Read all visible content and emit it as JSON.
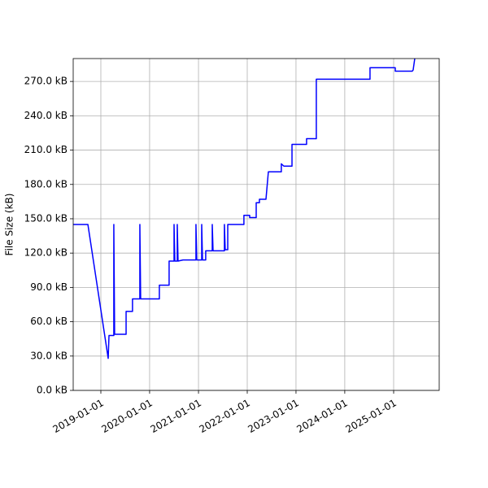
{
  "chart_data": {
    "type": "line",
    "ylabel": "File Size (kB)",
    "color": "#0000ff",
    "grid": true,
    "x": [
      "2018-06-08",
      "2018-09-26",
      "2019-02-25",
      "2019-03-03",
      "2019-04-08",
      "2019-04-08",
      "2019-04-14",
      "2019-07-09",
      "2019-07-09",
      "2019-08-26",
      "2019-08-26",
      "2019-10-20",
      "2019-10-20",
      "2019-10-26",
      "2020-03-14",
      "2020-03-14",
      "2020-05-26",
      "2020-05-26",
      "2020-07-02",
      "2020-07-02",
      "2020-07-08",
      "2020-07-26",
      "2020-07-26",
      "2020-08-01",
      "2020-09-07",
      "2020-12-13",
      "2020-12-13",
      "2020-12-19",
      "2021-01-25",
      "2021-01-25",
      "2021-01-31",
      "2021-02-24",
      "2021-02-24",
      "2021-04-14",
      "2021-04-14",
      "2021-04-20",
      "2021-07-14",
      "2021-07-14",
      "2021-07-20",
      "2021-08-08",
      "2021-08-08",
      "2021-12-07",
      "2021-12-07",
      "2022-01-19",
      "2022-01-19",
      "2022-03-09",
      "2022-03-09",
      "2022-04-02",
      "2022-04-02",
      "2022-05-21",
      "2022-06-08",
      "2022-09-13",
      "2022-09-13",
      "2022-10-02",
      "2022-12-02",
      "2022-12-02",
      "2023-03-21",
      "2023-03-21",
      "2023-06-02",
      "2023-06-02",
      "2024-07-08",
      "2024-07-08",
      "2025-01-13",
      "2025-01-13",
      "2025-05-20",
      "2025-05-27",
      "2025-06-08"
    ],
    "values": [
      145,
      145,
      28,
      48,
      48,
      145,
      49,
      49,
      69,
      69,
      80,
      80,
      145,
      80,
      80,
      92,
      92,
      113,
      113,
      145,
      113,
      113,
      145,
      113,
      114,
      114,
      145,
      114,
      114,
      145,
      114,
      114,
      122,
      122,
      145,
      122,
      122,
      145,
      123,
      123,
      145,
      145,
      153,
      153,
      151,
      151,
      164,
      164,
      167,
      167,
      191,
      191,
      198,
      196,
      196,
      215,
      215,
      220,
      220,
      272,
      272,
      282,
      282,
      279,
      279,
      280,
      290
    ],
    "xlim": [
      "2018-06-08",
      "2025-12-08"
    ],
    "xticks": [
      "2019-01-01",
      "2020-01-01",
      "2021-01-01",
      "2022-01-01",
      "2023-01-01",
      "2024-01-01",
      "2025-01-01"
    ],
    "ylim": [
      0,
      290
    ],
    "yticks": [
      {
        "value": 0,
        "label": "0.0 kB"
      },
      {
        "value": 30,
        "label": "30.0 kB"
      },
      {
        "value": 60,
        "label": "60.0 kB"
      },
      {
        "value": 90,
        "label": "90.0 kB"
      },
      {
        "value": 120,
        "label": "120.0 kB"
      },
      {
        "value": 150,
        "label": "150.0 kB"
      },
      {
        "value": 180,
        "label": "180.0 kB"
      },
      {
        "value": 210,
        "label": "210.0 kB"
      },
      {
        "value": 240,
        "label": "240.0 kB"
      },
      {
        "value": 270,
        "label": "270.0 kB"
      }
    ]
  }
}
